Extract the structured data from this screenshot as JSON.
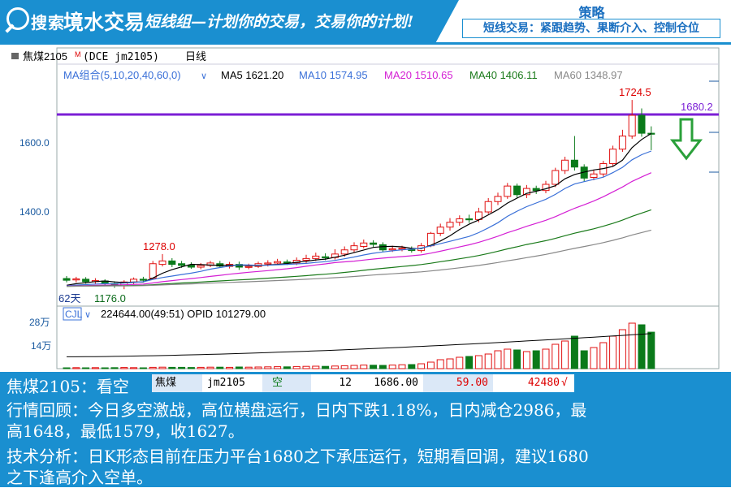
{
  "header": {
    "brand_a": "搜索",
    "brand_b": "境水交易",
    "slogan": "短线组—计划你的交易，交易你的计划!",
    "strategy_title": "策略",
    "strategy_text": "短线交易：紧跟趋势、果断介入、控制仓位"
  },
  "chart": {
    "symbol_label": "焦煤2105",
    "symbol_mark": "M",
    "exchange_label": "(DCE jm2105)",
    "period": "日线",
    "ma_group": "MA组合(5,10,20,40,60,0)",
    "ma_legend": [
      {
        "label": "MA5 1621.20",
        "color": "#000000"
      },
      {
        "label": "MA10 1574.95",
        "color": "#3a70d8"
      },
      {
        "label": "MA20 1510.65",
        "color": "#d41fd4"
      },
      {
        "label": "MA40 1406.11",
        "color": "#1a7a1a"
      },
      {
        "label": "MA60 1348.97",
        "color": "#888888"
      }
    ],
    "y_labels": [
      "1600.0",
      "1400.0"
    ],
    "annotations": {
      "high": "1724.5",
      "level": "1680.2",
      "mid_high": "1278.0",
      "low": "1176.0",
      "days": "62天"
    },
    "volume_row": {
      "name": "CJL",
      "text": "224644.00(49:51)  OPID 101279.00",
      "y_labels": [
        "28万",
        "14万"
      ]
    },
    "colors": {
      "up": "#e01010",
      "down": "#0a7a1a",
      "resistance": "#7b1fd6",
      "arrow": "#2aa03a"
    }
  },
  "chart_data": {
    "type": "candlestick",
    "title": "焦煤2105 (DCE jm2105) 日线",
    "resistance": 1680.2,
    "y_ticks": [
      1400.0,
      1600.0
    ],
    "candles": [
      {
        "o": 1207,
        "c": 1202,
        "h": 1214,
        "l": 1196
      },
      {
        "o": 1203,
        "c": 1206,
        "h": 1212,
        "l": 1196
      },
      {
        "o": 1205,
        "c": 1198,
        "h": 1211,
        "l": 1192
      },
      {
        "o": 1198,
        "c": 1201,
        "h": 1208,
        "l": 1192
      },
      {
        "o": 1200,
        "c": 1193,
        "h": 1205,
        "l": 1186
      },
      {
        "o": 1192,
        "c": 1188,
        "h": 1199,
        "l": 1180
      },
      {
        "o": 1186,
        "c": 1197,
        "h": 1202,
        "l": 1176
      },
      {
        "o": 1196,
        "c": 1205,
        "h": 1210,
        "l": 1190
      },
      {
        "o": 1205,
        "c": 1202,
        "h": 1212,
        "l": 1196
      },
      {
        "o": 1208,
        "c": 1250,
        "h": 1258,
        "l": 1205
      },
      {
        "o": 1248,
        "c": 1258,
        "h": 1278,
        "l": 1242
      },
      {
        "o": 1258,
        "c": 1248,
        "h": 1266,
        "l": 1240
      },
      {
        "o": 1250,
        "c": 1245,
        "h": 1258,
        "l": 1238
      },
      {
        "o": 1246,
        "c": 1240,
        "h": 1254,
        "l": 1235
      },
      {
        "o": 1240,
        "c": 1245,
        "h": 1252,
        "l": 1234
      },
      {
        "o": 1245,
        "c": 1252,
        "h": 1258,
        "l": 1240
      },
      {
        "o": 1250,
        "c": 1243,
        "h": 1258,
        "l": 1238
      },
      {
        "o": 1242,
        "c": 1248,
        "h": 1255,
        "l": 1236
      },
      {
        "o": 1248,
        "c": 1240,
        "h": 1256,
        "l": 1232
      },
      {
        "o": 1240,
        "c": 1242,
        "h": 1250,
        "l": 1234
      },
      {
        "o": 1242,
        "c": 1250,
        "h": 1256,
        "l": 1238
      },
      {
        "o": 1249,
        "c": 1252,
        "h": 1260,
        "l": 1242
      },
      {
        "o": 1252,
        "c": 1256,
        "h": 1264,
        "l": 1246
      },
      {
        "o": 1255,
        "c": 1252,
        "h": 1262,
        "l": 1246
      },
      {
        "o": 1252,
        "c": 1260,
        "h": 1268,
        "l": 1246
      },
      {
        "o": 1260,
        "c": 1265,
        "h": 1276,
        "l": 1252
      },
      {
        "o": 1265,
        "c": 1272,
        "h": 1282,
        "l": 1258
      },
      {
        "o": 1270,
        "c": 1268,
        "h": 1280,
        "l": 1260
      },
      {
        "o": 1268,
        "c": 1278,
        "h": 1292,
        "l": 1262
      },
      {
        "o": 1278,
        "c": 1290,
        "h": 1300,
        "l": 1270
      },
      {
        "o": 1290,
        "c": 1302,
        "h": 1312,
        "l": 1282
      },
      {
        "o": 1300,
        "c": 1310,
        "h": 1320,
        "l": 1294
      },
      {
        "o": 1310,
        "c": 1306,
        "h": 1318,
        "l": 1298
      },
      {
        "o": 1305,
        "c": 1290,
        "h": 1312,
        "l": 1284
      },
      {
        "o": 1290,
        "c": 1293,
        "h": 1302,
        "l": 1284
      },
      {
        "o": 1293,
        "c": 1295,
        "h": 1302,
        "l": 1286
      },
      {
        "o": 1292,
        "c": 1288,
        "h": 1300,
        "l": 1282
      },
      {
        "o": 1288,
        "c": 1302,
        "h": 1310,
        "l": 1282
      },
      {
        "o": 1302,
        "c": 1338,
        "h": 1342,
        "l": 1298
      },
      {
        "o": 1338,
        "c": 1356,
        "h": 1366,
        "l": 1330
      },
      {
        "o": 1356,
        "c": 1370,
        "h": 1382,
        "l": 1346
      },
      {
        "o": 1370,
        "c": 1380,
        "h": 1390,
        "l": 1360
      },
      {
        "o": 1380,
        "c": 1378,
        "h": 1392,
        "l": 1368
      },
      {
        "o": 1378,
        "c": 1400,
        "h": 1412,
        "l": 1370
      },
      {
        "o": 1400,
        "c": 1430,
        "h": 1440,
        "l": 1394
      },
      {
        "o": 1430,
        "c": 1445,
        "h": 1456,
        "l": 1420
      },
      {
        "o": 1445,
        "c": 1475,
        "h": 1484,
        "l": 1438
      },
      {
        "o": 1475,
        "c": 1450,
        "h": 1482,
        "l": 1440
      },
      {
        "o": 1450,
        "c": 1468,
        "h": 1478,
        "l": 1440
      },
      {
        "o": 1468,
        "c": 1462,
        "h": 1476,
        "l": 1452
      },
      {
        "o": 1462,
        "c": 1480,
        "h": 1490,
        "l": 1454
      },
      {
        "o": 1480,
        "c": 1520,
        "h": 1528,
        "l": 1472
      },
      {
        "o": 1520,
        "c": 1550,
        "h": 1560,
        "l": 1510
      },
      {
        "o": 1550,
        "c": 1530,
        "h": 1620,
        "l": 1520
      },
      {
        "o": 1530,
        "c": 1498,
        "h": 1538,
        "l": 1488
      },
      {
        "o": 1500,
        "c": 1510,
        "h": 1522,
        "l": 1492
      },
      {
        "o": 1510,
        "c": 1540,
        "h": 1548,
        "l": 1502
      },
      {
        "o": 1540,
        "c": 1582,
        "h": 1592,
        "l": 1532
      },
      {
        "o": 1582,
        "c": 1620,
        "h": 1638,
        "l": 1574
      },
      {
        "o": 1620,
        "c": 1680,
        "h": 1724.5,
        "l": 1612
      },
      {
        "o": 1680,
        "c": 1628,
        "h": 1700,
        "l": 1618
      },
      {
        "o": 1628,
        "c": 1627,
        "h": 1648,
        "l": 1579
      }
    ],
    "volume_ticks": [
      140000,
      280000
    ],
    "volumes": [
      5000,
      6000,
      5000,
      6000,
      5000,
      6000,
      7000,
      6000,
      5000,
      8000,
      9000,
      8000,
      8000,
      7000,
      8000,
      9000,
      9000,
      8000,
      10000,
      9000,
      10000,
      11000,
      12000,
      11000,
      13000,
      14000,
      15000,
      14000,
      16000,
      18000,
      20000,
      22000,
      21000,
      20000,
      22000,
      24000,
      25000,
      30000,
      40000,
      55000,
      60000,
      70000,
      75000,
      80000,
      90000,
      110000,
      120000,
      115000,
      105000,
      110000,
      120000,
      150000,
      170000,
      200000,
      110000,
      130000,
      160000,
      200000,
      240000,
      280000,
      270000,
      224644
    ]
  },
  "report": {
    "line1": "焦煤2105：看空",
    "table": [
      "焦煤",
      "jm2105",
      "空",
      "12",
      "1686.00",
      "59.00",
      "42480"
    ],
    "table_mark": "√",
    "line2": "行情回顾：今日多空激战，高位横盘运行，日内下跌1.18%，日内减仓2986，最",
    "line3": "高1648，最低1579，收1627。",
    "line4": "技术分析：日K形态目前在压力平台1680之下承压运行，短期看回调，建议1680",
    "line5": "之下逢高介入空单。"
  }
}
